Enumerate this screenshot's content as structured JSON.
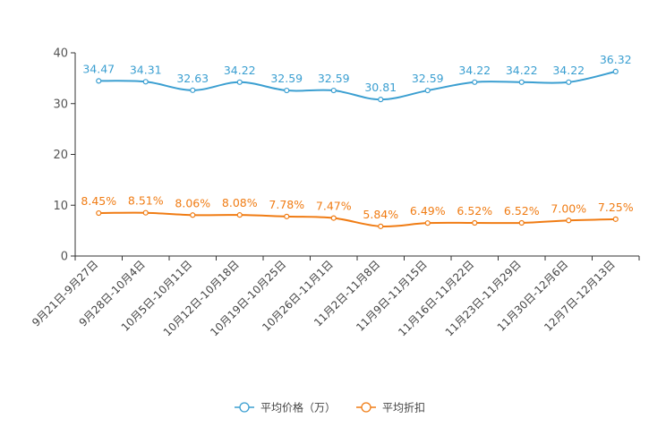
{
  "chart_data": {
    "type": "line",
    "title": "",
    "xlabel": "",
    "ylabel": "",
    "ylim": [
      0,
      40
    ],
    "yticks": [
      0,
      10,
      20,
      30,
      40
    ],
    "grid": false,
    "legend_position": "bottom",
    "categories": [
      "9月21日-9月27日",
      "9月28日-10月4日",
      "10月5日-10月11日",
      "10月12日-10月18日",
      "10月19日-10月25日",
      "10月26日-11月1日",
      "11月2日-11月8日",
      "11月9日-11月15日",
      "11月16日-11月22日",
      "11月23日-11月29日",
      "11月30日-12月6日",
      "12月7日-12月13日"
    ],
    "series": [
      {
        "name": "平均价格（万）",
        "color": "#3b9fd1",
        "values": [
          34.47,
          34.31,
          32.63,
          34.22,
          32.59,
          32.59,
          30.81,
          32.59,
          34.22,
          34.22,
          34.22,
          36.32
        ],
        "labels": [
          "34.47",
          "34.31",
          "32.63",
          "34.22",
          "32.59",
          "32.59",
          "30.81",
          "32.59",
          "34.22",
          "34.22",
          "34.22",
          "36.32"
        ]
      },
      {
        "name": "平均折扣",
        "color": "#f07c14",
        "values": [
          8.45,
          8.51,
          8.06,
          8.08,
          7.78,
          7.47,
          5.84,
          6.49,
          6.52,
          6.52,
          7.0,
          7.25
        ],
        "labels": [
          "8.45%",
          "8.51%",
          "8.06%",
          "8.08%",
          "7.78%",
          "7.47%",
          "5.84%",
          "6.49%",
          "6.52%",
          "6.52%",
          "7.00%",
          "7.25%"
        ]
      }
    ]
  }
}
